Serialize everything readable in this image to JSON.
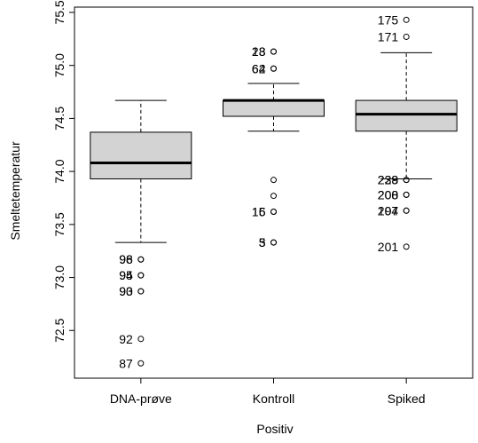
{
  "chart_data": {
    "type": "boxplot",
    "xlabel": "Positiv",
    "ylabel": "Smeltetemperatur",
    "ylim": [
      72.05,
      75.55
    ],
    "yticks": [
      72.5,
      73.0,
      73.5,
      74.0,
      74.5,
      75.0,
      75.5
    ],
    "categories": [
      "DNA-prøve",
      "Kontroll",
      "Spiked"
    ],
    "box_color": "#d3d3d3",
    "grid": false,
    "series": [
      {
        "category": "DNA-prøve",
        "whisker_low": 73.33,
        "q1": 73.93,
        "median": 74.08,
        "q3": 74.37,
        "whisker_high": 74.67,
        "outliers": [
          {
            "value": 73.17,
            "label": "98"
          },
          {
            "value": 73.17,
            "label": "96"
          },
          {
            "value": 73.02,
            "label": "95"
          },
          {
            "value": 73.02,
            "label": "94"
          },
          {
            "value": 72.87,
            "label": "90"
          },
          {
            "value": 72.87,
            "label": "93"
          },
          {
            "value": 72.42,
            "label": "92"
          },
          {
            "value": 72.19,
            "label": "87"
          }
        ]
      },
      {
        "category": "Kontroll",
        "whisker_low": 74.38,
        "q1": 74.52,
        "median": 74.67,
        "q3": 74.67,
        "whisker_high": 74.83,
        "outliers": [
          {
            "value": 75.13,
            "label": "23"
          },
          {
            "value": 75.13,
            "label": "18"
          },
          {
            "value": 74.97,
            "label": "64"
          },
          {
            "value": 74.97,
            "label": "62"
          },
          {
            "value": 73.92,
            "label": ""
          },
          {
            "value": 73.77,
            "label": ""
          },
          {
            "value": 73.62,
            "label": "16"
          },
          {
            "value": 73.62,
            "label": "15"
          },
          {
            "value": 73.33,
            "label": "5"
          },
          {
            "value": 73.33,
            "label": "3"
          }
        ]
      },
      {
        "category": "Spiked",
        "whisker_low": 73.93,
        "q1": 74.38,
        "median": 74.54,
        "q3": 74.67,
        "whisker_high": 75.12,
        "outliers": [
          {
            "value": 75.43,
            "label": "175"
          },
          {
            "value": 75.27,
            "label": "171"
          },
          {
            "value": 73.92,
            "label": "239"
          },
          {
            "value": 73.92,
            "label": "228"
          },
          {
            "value": 73.78,
            "label": "208"
          },
          {
            "value": 73.78,
            "label": "200"
          },
          {
            "value": 73.63,
            "label": "204"
          },
          {
            "value": 73.63,
            "label": "197"
          },
          {
            "value": 73.29,
            "label": "201"
          }
        ]
      }
    ]
  }
}
